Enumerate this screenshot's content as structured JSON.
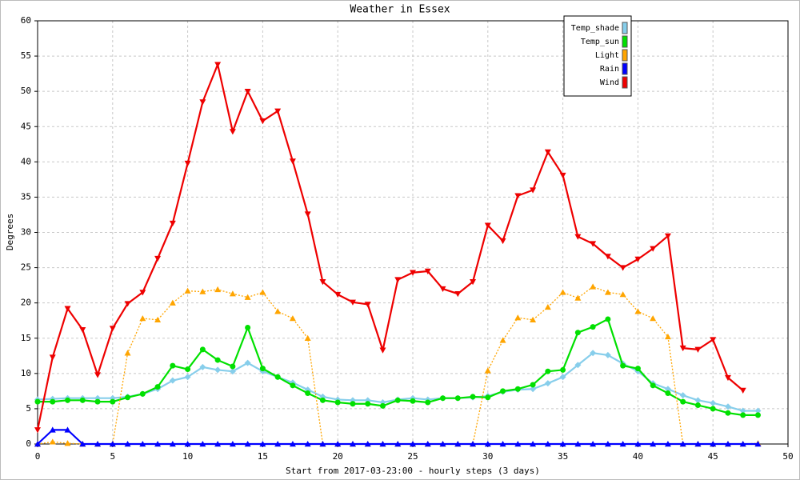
{
  "chart_data": {
    "type": "line",
    "title": "Weather in Essex",
    "y_label": "Degrees",
    "x_label": "Start from 2017-03-23:00 - hourly steps (3 days)",
    "x": [
      0,
      1,
      2,
      3,
      4,
      5,
      6,
      7,
      8,
      9,
      10,
      11,
      12,
      13,
      14,
      15,
      16,
      17,
      18,
      19,
      20,
      21,
      22,
      23,
      24,
      25,
      26,
      27,
      28,
      29,
      30,
      31,
      32,
      33,
      34,
      35,
      36,
      37,
      38,
      39,
      40,
      41,
      42,
      43,
      44,
      45,
      46,
      47,
      48
    ],
    "xlim": [
      0,
      50
    ],
    "xticks": [
      0,
      5,
      10,
      15,
      20,
      25,
      30,
      35,
      40,
      45,
      50
    ],
    "ylim": [
      0,
      60
    ],
    "yticks": [
      0,
      5,
      10,
      15,
      20,
      25,
      30,
      35,
      40,
      45,
      50,
      55,
      60
    ],
    "grid": true,
    "legend_position": "upper-right",
    "series": [
      {
        "name": "Temp_shade",
        "color": "#87ceeb",
        "marker": "diamond",
        "dash": "solid",
        "values": [
          6.3,
          6.4,
          6.5,
          6.5,
          6.5,
          6.5,
          6.7,
          7.1,
          7.8,
          9,
          9.5,
          10.9,
          10.5,
          10.3,
          11.5,
          10.3,
          9.5,
          8.7,
          7.7,
          6.7,
          6.3,
          6.2,
          6.2,
          5.9,
          6.3,
          6.5,
          6.3,
          6.5,
          6.5,
          6.6,
          6.8,
          7.4,
          7.7,
          7.8,
          8.6,
          9.5,
          11.2,
          12.9,
          12.6,
          11.4,
          10.3,
          8.6,
          7.8,
          6.9,
          6.2,
          5.8,
          5.3,
          4.7,
          4.7
        ]
      },
      {
        "name": "Temp_sun",
        "color": "#00e000",
        "marker": "circle",
        "dash": "solid",
        "values": [
          6,
          6,
          6.2,
          6.2,
          6,
          6,
          6.6,
          7.1,
          8.1,
          11.1,
          10.6,
          13.4,
          11.9,
          11,
          16.5,
          10.7,
          9.5,
          8.3,
          7.2,
          6.2,
          5.9,
          5.7,
          5.7,
          5.4,
          6.2,
          6.1,
          5.9,
          6.5,
          6.5,
          6.7,
          6.6,
          7.5,
          7.8,
          8.4,
          10.3,
          10.5,
          15.8,
          16.6,
          17.7,
          11.1,
          10.7,
          8.3,
          7.2,
          6,
          5.5,
          5,
          4.4,
          4.1,
          4.1
        ]
      },
      {
        "name": "Light",
        "color": "#ffa500",
        "marker": "triangle-up",
        "dash": "dotted",
        "values": [
          0,
          0.3,
          0.1,
          0,
          0,
          0,
          12.9,
          17.8,
          17.6,
          20,
          21.7,
          21.6,
          21.9,
          21.3,
          20.8,
          21.5,
          18.8,
          17.8,
          15,
          0,
          0,
          0,
          0,
          0,
          0,
          0,
          0,
          0,
          0,
          0,
          10.4,
          14.7,
          17.9,
          17.6,
          19.4,
          21.5,
          20.7,
          22.3,
          21.5,
          21.2,
          18.8,
          17.8,
          15.2,
          0,
          0,
          0,
          0,
          0,
          0.1
        ]
      },
      {
        "name": "Rain",
        "color": "#0000ff",
        "marker": "triangle-up",
        "dash": "solid",
        "values": [
          0,
          2,
          2,
          0,
          0,
          0,
          0,
          0,
          0,
          0,
          0,
          0,
          0,
          0,
          0,
          0,
          0,
          0,
          0,
          0,
          0,
          0,
          0,
          0,
          0,
          0,
          0,
          0,
          0,
          0,
          0,
          0,
          0,
          0,
          0,
          0,
          0,
          0,
          0,
          0,
          0,
          0,
          0,
          0,
          0,
          0,
          0,
          0,
          0
        ]
      },
      {
        "name": "Wind",
        "color": "#ee0000",
        "marker": "triangle-down",
        "dash": "solid",
        "values": [
          2,
          12.3,
          19.2,
          16.2,
          9.8,
          16.4,
          19.9,
          21.5,
          26.3,
          31.3,
          39.8,
          48.5,
          53.8,
          44.3,
          50,
          45.8,
          47.2,
          40.1,
          32.6,
          23,
          21.2,
          20.1,
          19.8,
          13.3,
          23.3,
          24.3,
          24.5,
          22,
          21.3,
          23,
          31,
          28.8,
          35.2,
          36,
          41.4,
          38.1,
          29.4,
          28.4,
          26.6,
          25,
          26.2,
          27.7,
          29.5,
          13.6,
          13.4,
          14.8,
          9.4,
          7.6,
          null
        ]
      }
    ]
  }
}
